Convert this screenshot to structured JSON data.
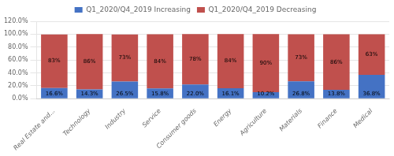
{
  "chart_data": {
    "type": "bar",
    "stacked": true,
    "categories": [
      "Real Estate and...",
      "Technology",
      "Industry",
      "Service",
      "Consumer goods",
      "Energy",
      "Agriculture",
      "Materials",
      "Finance",
      "Medical"
    ],
    "series": [
      {
        "name": "Q1_2020/Q4_2019 Increasing",
        "color": "#4472c4",
        "values": [
          16.6,
          14.3,
          26.5,
          15.8,
          22.0,
          16.1,
          10.2,
          26.8,
          13.8,
          36.8
        ],
        "value_labels": [
          "16.6%",
          "14.3%",
          "26.5%",
          "15.8%",
          "22.0%",
          "16.1%",
          "10.2%",
          "26.8%",
          "13.8%",
          "36.8%"
        ]
      },
      {
        "name": "Q1_2020/Q4_2019 Decreasing",
        "color": "#c0504d",
        "values": [
          83.0,
          86.0,
          73.0,
          84.0,
          78.0,
          84.0,
          90.0,
          73.0,
          86.0,
          63.0
        ],
        "value_labels": [
          "83%",
          "86%",
          "73%",
          "84%",
          "78%",
          "84%",
          "90%",
          "73%",
          "86%",
          "63%"
        ]
      }
    ],
    "ylim": [
      0,
      120
    ],
    "yticks": [
      {
        "value": 0,
        "label": "0.0%"
      },
      {
        "value": 20,
        "label": "20.0%"
      },
      {
        "value": 40,
        "label": "40.0%"
      },
      {
        "value": 60,
        "label": "60.0%"
      },
      {
        "value": 80,
        "label": "80.0%"
      },
      {
        "value": 100,
        "label": "100.0%"
      },
      {
        "value": 120,
        "label": "120.0%"
      }
    ],
    "grid": true,
    "legend": "top",
    "data_labels": true
  }
}
